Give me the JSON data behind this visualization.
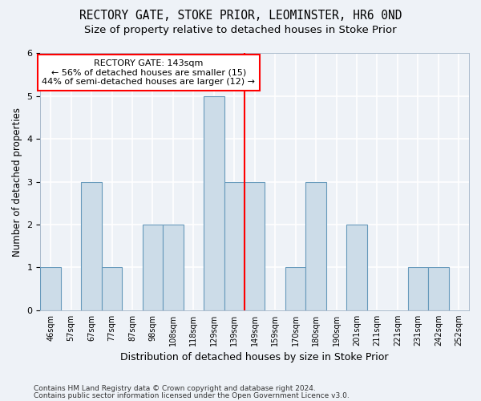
{
  "title": "RECTORY GATE, STOKE PRIOR, LEOMINSTER, HR6 0ND",
  "subtitle": "Size of property relative to detached houses in Stoke Prior",
  "xlabel": "Distribution of detached houses by size in Stoke Prior",
  "ylabel": "Number of detached properties",
  "footnote1": "Contains HM Land Registry data © Crown copyright and database right 2024.",
  "footnote2": "Contains public sector information licensed under the Open Government Licence v3.0.",
  "categories": [
    "46sqm",
    "57sqm",
    "67sqm",
    "77sqm",
    "87sqm",
    "98sqm",
    "108sqm",
    "118sqm",
    "129sqm",
    "139sqm",
    "149sqm",
    "159sqm",
    "170sqm",
    "180sqm",
    "190sqm",
    "201sqm",
    "211sqm",
    "221sqm",
    "231sqm",
    "242sqm",
    "252sqm"
  ],
  "values": [
    1,
    0,
    3,
    1,
    0,
    2,
    2,
    0,
    5,
    3,
    3,
    0,
    1,
    3,
    0,
    2,
    0,
    0,
    1,
    1,
    0
  ],
  "bar_color": "#ccdce8",
  "bar_edge_color": "#6699bb",
  "annotation_line_color": "red",
  "annotation_box_text": "RECTORY GATE: 143sqm\n← 56% of detached houses are smaller (15)\n44% of semi-detached houses are larger (12) →",
  "annotation_box_color": "red",
  "ylim": [
    0,
    6
  ],
  "background_color": "#eef2f7",
  "plot_background": "#eef2f7",
  "grid_color": "white",
  "title_fontsize": 10.5,
  "subtitle_fontsize": 9.5,
  "ylabel_fontsize": 8.5,
  "xlabel_fontsize": 9,
  "tick_fontsize": 7,
  "annotation_fontsize": 8,
  "footnote_fontsize": 6.5
}
